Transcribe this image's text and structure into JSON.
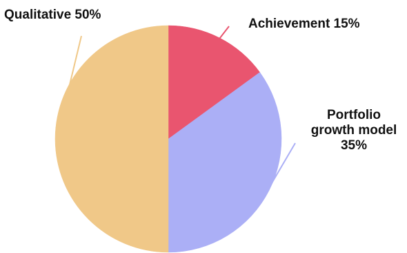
{
  "chart_data": {
    "type": "pie",
    "title": "",
    "slices": [
      {
        "label": "Achievement 15%",
        "label_lines": [
          "Achievement 15%"
        ],
        "value": 15,
        "color": "#e9556f"
      },
      {
        "label": "Portfolio growth model 35%",
        "label_lines": [
          "Portfolio",
          "growth model",
          "35%"
        ],
        "value": 35,
        "color": "#abaff6"
      },
      {
        "label": "Qualitative 50%",
        "label_lines": [
          "Qualitative 50%"
        ],
        "value": 50,
        "color": "#f0c888"
      }
    ],
    "start_angle_deg": 0,
    "direction": "clockwise",
    "legend": "none",
    "label_placement": "outside with leader lines"
  }
}
